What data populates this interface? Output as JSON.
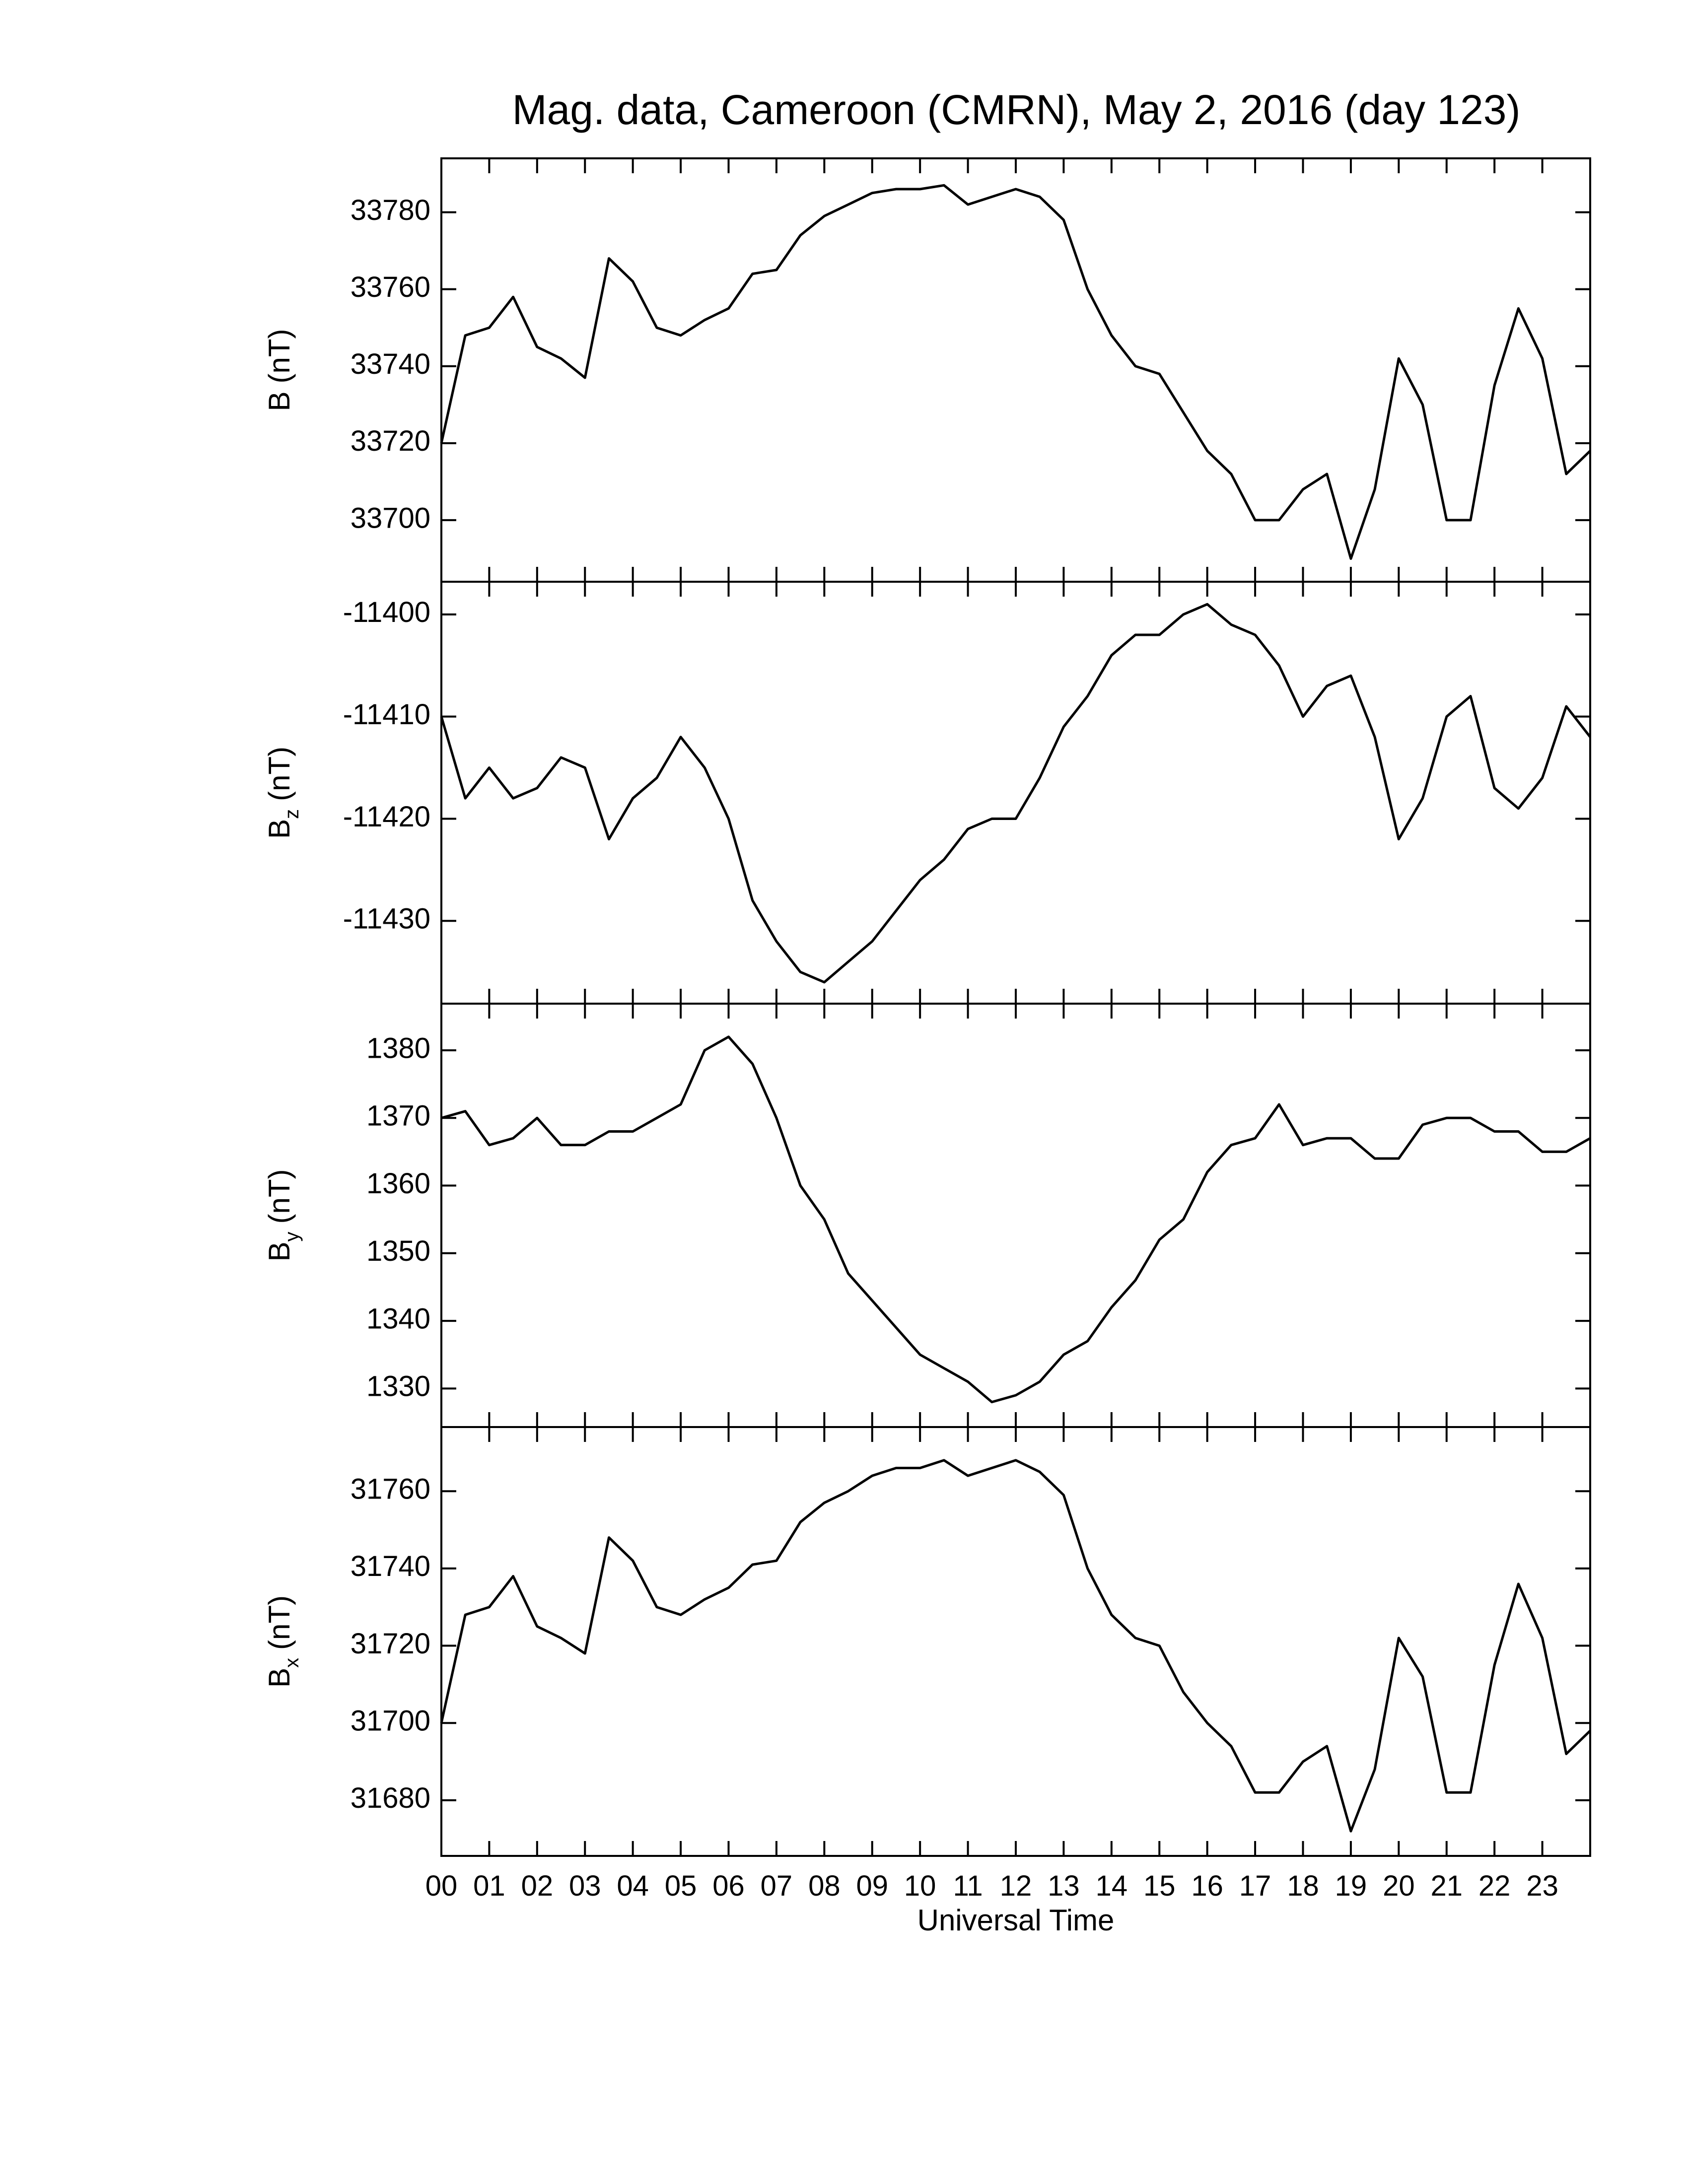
{
  "chart_data": [
    {
      "type": "line",
      "title": "Mag. data, Cameroon (CMRN), May 2, 2016 (day 123)",
      "ylabel": {
        "symbol": "B",
        "unit": "(nT)"
      },
      "color": "#000000",
      "x": [
        0,
        0.5,
        1,
        1.5,
        2,
        2.5,
        3,
        3.5,
        4,
        4.5,
        5,
        5.5,
        6,
        6.5,
        7,
        7.5,
        8,
        8.5,
        9,
        9.5,
        10,
        10.5,
        11,
        11.5,
        12,
        12.5,
        13,
        13.5,
        14,
        14.5,
        15,
        15.5,
        16,
        16.5,
        17,
        17.5,
        18,
        18.5,
        19,
        19.5,
        20,
        20.5,
        21,
        21.5,
        22,
        22.5,
        23,
        23.5,
        24
      ],
      "values": [
        33720,
        33748,
        33750,
        33758,
        33745,
        33742,
        33737,
        33768,
        33762,
        33750,
        33748,
        33752,
        33755,
        33764,
        33765,
        33774,
        33779,
        33782,
        33785,
        33786,
        33786,
        33787,
        33782,
        33784,
        33786,
        33784,
        33778,
        33760,
        33748,
        33740,
        33738,
        33728,
        33718,
        33712,
        33700,
        33700,
        33708,
        33712,
        33690,
        33708,
        33742,
        33730,
        33700,
        33700,
        33735,
        33755,
        33742,
        33712,
        33718
      ],
      "xlim": [
        0,
        24
      ],
      "ylim": [
        33684,
        33794
      ],
      "yticks": [
        33700,
        33720,
        33740,
        33760,
        33780
      ]
    },
    {
      "type": "line",
      "ylabel": {
        "symbol": "B",
        "subscript": "z",
        "unit": "(nT)"
      },
      "color": "#000000",
      "x": [
        0,
        0.5,
        1,
        1.5,
        2,
        2.5,
        3,
        3.5,
        4,
        4.5,
        5,
        5.5,
        6,
        6.5,
        7,
        7.5,
        8,
        8.5,
        9,
        9.5,
        10,
        10.5,
        11,
        11.5,
        12,
        12.5,
        13,
        13.5,
        14,
        14.5,
        15,
        15.5,
        16,
        16.5,
        17,
        17.5,
        18,
        18.5,
        19,
        19.5,
        20,
        20.5,
        21,
        21.5,
        22,
        22.5,
        23,
        23.5,
        24
      ],
      "values": [
        -11410,
        -11418,
        -11415,
        -11418,
        -11417,
        -11414,
        -11415,
        -11422,
        -11418,
        -11416,
        -11412,
        -11415,
        -11420,
        -11428,
        -11432,
        -11435,
        -11436,
        -11434,
        -11432,
        -11429,
        -11426,
        -11424,
        -11421,
        -11420,
        -11420,
        -11416,
        -11411,
        -11408,
        -11404,
        -11402,
        -11402,
        -11400,
        -11399,
        -11401,
        -11402,
        -11405,
        -11410,
        -11407,
        -11406,
        -11412,
        -11422,
        -11418,
        -11410,
        -11408,
        -11417,
        -11419,
        -11416,
        -11409,
        -11412
      ],
      "xlim": [
        0,
        24
      ],
      "ylim": [
        -11438.1,
        -11396.8
      ],
      "yticks": [
        -11430,
        -11420,
        -11410,
        -11400
      ]
    },
    {
      "type": "line",
      "ylabel": {
        "symbol": "B",
        "subscript": "y",
        "unit": "(nT)"
      },
      "color": "#000000",
      "x": [
        0,
        0.5,
        1,
        1.5,
        2,
        2.5,
        3,
        3.5,
        4,
        4.5,
        5,
        5.5,
        6,
        6.5,
        7,
        7.5,
        8,
        8.5,
        9,
        9.5,
        10,
        10.5,
        11,
        11.5,
        12,
        12.5,
        13,
        13.5,
        14,
        14.5,
        15,
        15.5,
        16,
        16.5,
        17,
        17.5,
        18,
        18.5,
        19,
        19.5,
        20,
        20.5,
        21,
        21.5,
        22,
        22.5,
        23,
        23.5,
        24
      ],
      "values": [
        1370,
        1371,
        1366,
        1367,
        1370,
        1366,
        1366,
        1368,
        1368,
        1370,
        1372,
        1380,
        1382,
        1378,
        1370,
        1360,
        1355,
        1347,
        1343,
        1339,
        1335,
        1333,
        1331,
        1328,
        1329,
        1331,
        1335,
        1337,
        1342,
        1346,
        1352,
        1355,
        1362,
        1366,
        1367,
        1372,
        1366,
        1367,
        1367,
        1364,
        1364,
        1369,
        1370,
        1370,
        1368,
        1368,
        1365,
        1365,
        1367
      ],
      "xlim": [
        0,
        24
      ],
      "ylim": [
        1324.3,
        1386.9
      ],
      "yticks": [
        1330,
        1340,
        1350,
        1360,
        1370,
        1380
      ]
    },
    {
      "type": "line",
      "ylabel": {
        "symbol": "B",
        "subscript": "x",
        "unit": "(nT)"
      },
      "color": "#000000",
      "xlabel": "Universal Time",
      "x": [
        0,
        0.5,
        1,
        1.5,
        2,
        2.5,
        3,
        3.5,
        4,
        4.5,
        5,
        5.5,
        6,
        6.5,
        7,
        7.5,
        8,
        8.5,
        9,
        9.5,
        10,
        10.5,
        11,
        11.5,
        12,
        12.5,
        13,
        13.5,
        14,
        14.5,
        15,
        15.5,
        16,
        16.5,
        17,
        17.5,
        18,
        18.5,
        19,
        19.5,
        20,
        20.5,
        21,
        21.5,
        22,
        22.5,
        23,
        23.5,
        24
      ],
      "values": [
        31700,
        31728,
        31730,
        31738,
        31725,
        31722,
        31718,
        31748,
        31742,
        31730,
        31728,
        31732,
        31735,
        31741,
        31742,
        31752,
        31757,
        31760,
        31764,
        31766,
        31766,
        31768,
        31764,
        31766,
        31768,
        31765,
        31759,
        31740,
        31728,
        31722,
        31720,
        31708,
        31700,
        31694,
        31682,
        31682,
        31690,
        31694,
        31672,
        31688,
        31722,
        31712,
        31682,
        31682,
        31715,
        31736,
        31722,
        31692,
        31698
      ],
      "xlim": [
        0,
        24
      ],
      "ylim": [
        31665.6,
        31776.6
      ],
      "yticks": [
        31680,
        31700,
        31720,
        31740,
        31760
      ],
      "xticks": [
        {
          "value": 0,
          "label": "00"
        },
        {
          "value": 1,
          "label": "01"
        },
        {
          "value": 2,
          "label": "02"
        },
        {
          "value": 3,
          "label": "03"
        },
        {
          "value": 4,
          "label": "04"
        },
        {
          "value": 5,
          "label": "05"
        },
        {
          "value": 6,
          "label": "06"
        },
        {
          "value": 7,
          "label": "07"
        },
        {
          "value": 8,
          "label": "08"
        },
        {
          "value": 9,
          "label": "09"
        },
        {
          "value": 10,
          "label": "10"
        },
        {
          "value": 11,
          "label": "11"
        },
        {
          "value": 12,
          "label": "12"
        },
        {
          "value": 13,
          "label": "13"
        },
        {
          "value": 14,
          "label": "14"
        },
        {
          "value": 15,
          "label": "15"
        },
        {
          "value": 16,
          "label": "16"
        },
        {
          "value": 17,
          "label": "17"
        },
        {
          "value": 18,
          "label": "18"
        },
        {
          "value": 19,
          "label": "19"
        },
        {
          "value": 20,
          "label": "20"
        },
        {
          "value": 21,
          "label": "21"
        },
        {
          "value": 22,
          "label": "22"
        },
        {
          "value": 23,
          "label": "23"
        }
      ]
    }
  ]
}
